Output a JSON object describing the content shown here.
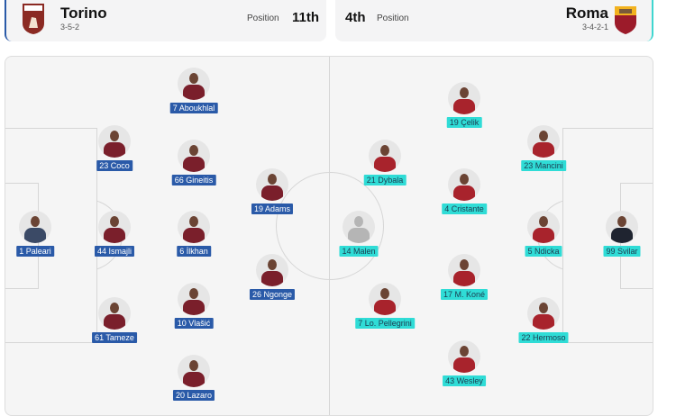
{
  "home": {
    "name": "Torino",
    "formation": "3-5-2",
    "position_label": "Position",
    "position": "11th",
    "crest_text": "TORINO FC",
    "color": "#2a5aa8",
    "kit": "#7a1f2b",
    "gk_kit": "#3b4a66"
  },
  "away": {
    "name": "Roma",
    "formation": "3-4-2-1",
    "position_label": "Position",
    "position": "4th",
    "crest_text": "ROMA",
    "color": "#2fdcd6",
    "kit": "#a8232c",
    "gk_kit": "#1f2430"
  },
  "home_players": [
    {
      "label": "1 Paleari",
      "gk": true
    },
    {
      "label": "23 Coco"
    },
    {
      "label": "44 Ismajli"
    },
    {
      "label": "61 Tameze"
    },
    {
      "label": "7 Aboukhlal"
    },
    {
      "label": "66 Gineitis"
    },
    {
      "label": "6 İlkhan"
    },
    {
      "label": "10 Vlašić"
    },
    {
      "label": "20 Lazaro"
    },
    {
      "label": "19 Adams"
    },
    {
      "label": "26 Ngonge"
    }
  ],
  "away_players": [
    {
      "label": "14 Malen",
      "placeholder": true
    },
    {
      "label": "21 Dybala"
    },
    {
      "label": "7 Lo. Pellegrini"
    },
    {
      "label": "19 Çelik"
    },
    {
      "label": "4 Cristante"
    },
    {
      "label": "17 M. Koné"
    },
    {
      "label": "43 Wesley"
    },
    {
      "label": "23 Mancini"
    },
    {
      "label": "5 Ndicka"
    },
    {
      "label": "22 Hermoso"
    },
    {
      "label": "99 Svilar",
      "gk": true
    }
  ]
}
